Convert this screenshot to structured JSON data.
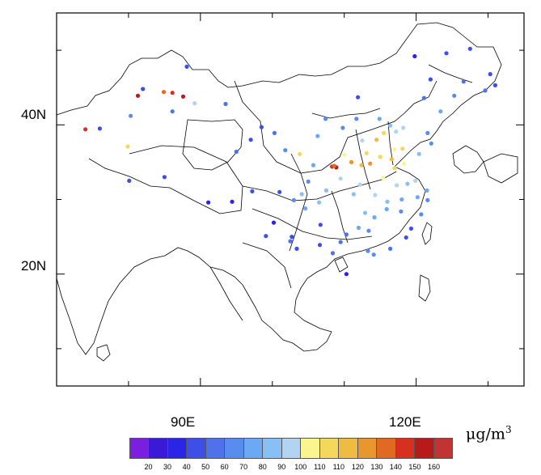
{
  "map": {
    "lat_labels": [
      "40N",
      "20N"
    ],
    "lon_labels": [
      "90E",
      "120E"
    ],
    "lon_range": [
      70,
      135
    ],
    "lat_range": [
      5,
      55
    ]
  },
  "colorbar": {
    "units": "μg/m",
    "units_exp": "3",
    "tick_labels": [
      "20",
      "30",
      "40",
      "50",
      "60",
      "70",
      "80",
      "90",
      "100",
      "110",
      "110",
      "120",
      "130",
      "140",
      "150",
      "160"
    ],
    "colors": [
      "#7a1fe0",
      "#3a1ad6",
      "#2a24e6",
      "#3d4fe6",
      "#4f72ec",
      "#5a8cf0",
      "#6ca8f4",
      "#88c0f4",
      "#b2d4f2",
      "#fbf590",
      "#f4d85c",
      "#eebc42",
      "#e8962e",
      "#e06a22",
      "#d83020",
      "#b81a1a",
      "#c23434"
    ]
  },
  "stations": [
    {
      "lon": 74.0,
      "lat": 39.4,
      "v": 150
    },
    {
      "lon": 76.0,
      "lat": 39.5,
      "v": 40
    },
    {
      "lon": 79.9,
      "lat": 37.1,
      "v": 110
    },
    {
      "lon": 81.3,
      "lat": 43.9,
      "v": 160
    },
    {
      "lon": 84.9,
      "lat": 44.4,
      "v": 140
    },
    {
      "lon": 87.6,
      "lat": 43.8,
      "v": 160
    },
    {
      "lon": 86.1,
      "lat": 44.3,
      "v": 150
    },
    {
      "lon": 89.2,
      "lat": 42.9,
      "v": 90
    },
    {
      "lon": 80.3,
      "lat": 41.2,
      "v": 60
    },
    {
      "lon": 82.0,
      "lat": 44.8,
      "v": 40
    },
    {
      "lon": 86.1,
      "lat": 41.8,
      "v": 50
    },
    {
      "lon": 88.1,
      "lat": 47.8,
      "v": 40
    },
    {
      "lon": 93.5,
      "lat": 42.8,
      "v": 50
    },
    {
      "lon": 91.1,
      "lat": 29.6,
      "v": 30
    },
    {
      "lon": 94.4,
      "lat": 29.7,
      "v": 30
    },
    {
      "lon": 97.2,
      "lat": 31.1,
      "v": 40
    },
    {
      "lon": 101.8,
      "lat": 36.6,
      "v": 60
    },
    {
      "lon": 103.8,
      "lat": 36.1,
      "v": 110
    },
    {
      "lon": 106.3,
      "lat": 38.5,
      "v": 70
    },
    {
      "lon": 106.7,
      "lat": 26.6,
      "v": 40
    },
    {
      "lon": 104.1,
      "lat": 30.7,
      "v": 80
    },
    {
      "lon": 106.5,
      "lat": 29.6,
      "v": 80
    },
    {
      "lon": 102.7,
      "lat": 25.0,
      "v": 40
    },
    {
      "lon": 108.9,
      "lat": 34.3,
      "v": 160
    },
    {
      "lon": 108.3,
      "lat": 34.4,
      "v": 150
    },
    {
      "lon": 108.6,
      "lat": 34.5,
      "v": 140
    },
    {
      "lon": 111.0,
      "lat": 35.0,
      "v": 130
    },
    {
      "lon": 112.5,
      "lat": 37.9,
      "v": 90
    },
    {
      "lon": 111.7,
      "lat": 40.8,
      "v": 60
    },
    {
      "lon": 113.6,
      "lat": 34.8,
      "v": 130
    },
    {
      "lon": 114.5,
      "lat": 38.0,
      "v": 120
    },
    {
      "lon": 115.5,
      "lat": 38.9,
      "v": 110
    },
    {
      "lon": 116.4,
      "lat": 39.9,
      "v": 80
    },
    {
      "lon": 117.2,
      "lat": 39.1,
      "v": 90
    },
    {
      "lon": 117.0,
      "lat": 36.7,
      "v": 100
    },
    {
      "lon": 118.1,
      "lat": 36.8,
      "v": 110
    },
    {
      "lon": 114.3,
      "lat": 30.6,
      "v": 90
    },
    {
      "lon": 112.9,
      "lat": 28.2,
      "v": 80
    },
    {
      "lon": 115.9,
      "lat": 28.7,
      "v": 70
    },
    {
      "lon": 117.3,
      "lat": 31.9,
      "v": 90
    },
    {
      "lon": 118.8,
      "lat": 32.1,
      "v": 80
    },
    {
      "lon": 120.2,
      "lat": 30.3,
      "v": 70
    },
    {
      "lon": 121.5,
      "lat": 31.2,
      "v": 70
    },
    {
      "lon": 119.3,
      "lat": 26.1,
      "v": 40
    },
    {
      "lon": 113.3,
      "lat": 23.1,
      "v": 60
    },
    {
      "lon": 114.1,
      "lat": 22.6,
      "v": 60
    },
    {
      "lon": 108.4,
      "lat": 22.8,
      "v": 50
    },
    {
      "lon": 110.3,
      "lat": 20.0,
      "v": 30
    },
    {
      "lon": 118.6,
      "lat": 24.9,
      "v": 40
    },
    {
      "lon": 121.6,
      "lat": 29.9,
      "v": 60
    },
    {
      "lon": 123.4,
      "lat": 41.8,
      "v": 70
    },
    {
      "lon": 125.3,
      "lat": 43.9,
      "v": 60
    },
    {
      "lon": 126.6,
      "lat": 45.8,
      "v": 50
    },
    {
      "lon": 122.0,
      "lat": 46.1,
      "v": 40
    },
    {
      "lon": 119.8,
      "lat": 49.2,
      "v": 30
    },
    {
      "lon": 124.2,
      "lat": 49.6,
      "v": 40
    },
    {
      "lon": 127.5,
      "lat": 50.2,
      "v": 40
    },
    {
      "lon": 129.6,
      "lat": 44.6,
      "v": 50
    },
    {
      "lon": 130.3,
      "lat": 46.8,
      "v": 40
    },
    {
      "lon": 131.0,
      "lat": 45.3,
      "v": 40
    },
    {
      "lon": 121.6,
      "lat": 38.9,
      "v": 60
    },
    {
      "lon": 118.2,
      "lat": 39.6,
      "v": 90
    },
    {
      "lon": 119.9,
      "lat": 32.5,
      "v": 90
    },
    {
      "lon": 116.6,
      "lat": 35.4,
      "v": 120
    },
    {
      "lon": 115.0,
      "lat": 35.7,
      "v": 110
    },
    {
      "lon": 112.4,
      "lat": 34.6,
      "v": 120
    },
    {
      "lon": 110.0,
      "lat": 36.0,
      "v": 100
    },
    {
      "lon": 109.5,
      "lat": 32.8,
      "v": 90
    },
    {
      "lon": 111.3,
      "lat": 30.7,
      "v": 80
    },
    {
      "lon": 105.7,
      "lat": 34.6,
      "v": 70
    },
    {
      "lon": 100.3,
      "lat": 38.9,
      "v": 50
    },
    {
      "lon": 98.5,
      "lat": 39.7,
      "v": 40
    },
    {
      "lon": 95.0,
      "lat": 36.4,
      "v": 50
    },
    {
      "lon": 100.2,
      "lat": 26.9,
      "v": 30
    },
    {
      "lon": 103.4,
      "lat": 23.4,
      "v": 40
    },
    {
      "lon": 104.6,
      "lat": 28.8,
      "v": 70
    },
    {
      "lon": 107.5,
      "lat": 31.2,
      "v": 80
    },
    {
      "lon": 109.5,
      "lat": 24.3,
      "v": 50
    },
    {
      "lon": 112.0,
      "lat": 26.2,
      "v": 70
    },
    {
      "lon": 113.4,
      "lat": 25.8,
      "v": 60
    },
    {
      "lon": 116.4,
      "lat": 23.4,
      "v": 50
    },
    {
      "lon": 117.9,
      "lat": 28.4,
      "v": 60
    },
    {
      "lon": 120.7,
      "lat": 28.0,
      "v": 60
    },
    {
      "lon": 114.9,
      "lat": 40.8,
      "v": 70
    },
    {
      "lon": 113.1,
      "lat": 36.2,
      "v": 110
    },
    {
      "lon": 117.0,
      "lat": 34.2,
      "v": 110
    },
    {
      "lon": 115.4,
      "lat": 32.9,
      "v": 100
    },
    {
      "lon": 118.3,
      "lat": 34.8,
      "v": 100
    },
    {
      "lon": 120.4,
      "lat": 36.1,
      "v": 80
    },
    {
      "lon": 122.1,
      "lat": 37.5,
      "v": 60
    },
    {
      "lon": 121.1,
      "lat": 43.6,
      "v": 50
    },
    {
      "lon": 111.9,
      "lat": 43.7,
      "v": 40
    },
    {
      "lon": 109.8,
      "lat": 39.6,
      "v": 60
    },
    {
      "lon": 107.4,
      "lat": 40.8,
      "v": 60
    },
    {
      "lon": 99.1,
      "lat": 25.1,
      "v": 40
    },
    {
      "lon": 102.5,
      "lat": 24.4,
      "v": 50
    },
    {
      "lon": 106.6,
      "lat": 23.9,
      "v": 40
    },
    {
      "lon": 110.3,
      "lat": 25.3,
      "v": 50
    },
    {
      "lon": 114.2,
      "lat": 27.6,
      "v": 70
    },
    {
      "lon": 116.0,
      "lat": 29.7,
      "v": 80
    },
    {
      "lon": 118.0,
      "lat": 30.0,
      "v": 70
    },
    {
      "lon": 112.2,
      "lat": 32.0,
      "v": 90
    },
    {
      "lon": 105.0,
      "lat": 32.4,
      "v": 60
    },
    {
      "lon": 103.0,
      "lat": 29.9,
      "v": 60
    },
    {
      "lon": 97.0,
      "lat": 38.0,
      "v": 40
    },
    {
      "lon": 85.0,
      "lat": 33.0,
      "v": 40
    },
    {
      "lon": 80.1,
      "lat": 32.5,
      "v": 40
    },
    {
      "lon": 101.0,
      "lat": 31.0,
      "v": 40
    }
  ]
}
